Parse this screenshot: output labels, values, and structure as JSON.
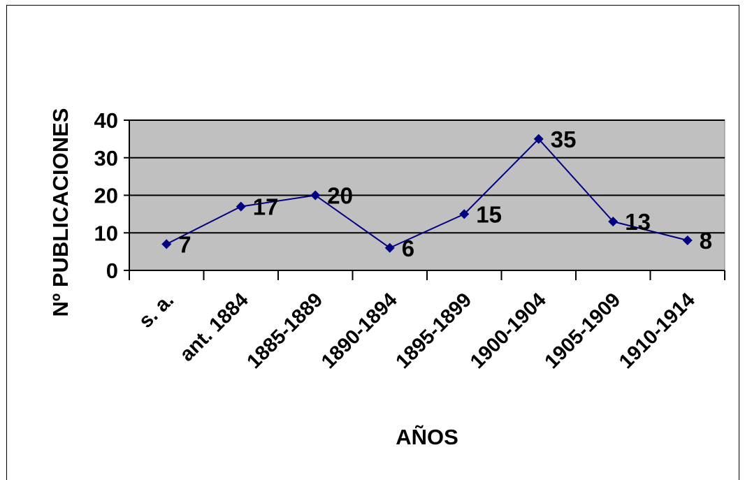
{
  "chart_data": {
    "type": "line",
    "categories": [
      "s. a.",
      "ant.  1884",
      "1885-1889",
      "1890-1894",
      "1895-1899",
      "1900-1904",
      "1905-1909",
      "1910-1914"
    ],
    "series": [
      {
        "values": [
          7,
          17,
          20,
          6,
          15,
          35,
          13,
          8
        ]
      }
    ],
    "data_labels": [
      "7",
      "17",
      "20",
      "6",
      "15",
      "35",
      "13",
      "8"
    ],
    "xlabel": "AÑOS",
    "ylabel": "Nº PUBLICACIONES",
    "ylim": [
      0,
      40
    ],
    "yticks": [
      "0",
      "10",
      "20",
      "30",
      "40"
    ],
    "grid": true,
    "legend": "none",
    "colors": {
      "line": "#000080",
      "marker": "#000080",
      "plot_bg": "#c0c0c0",
      "grid": "#000000"
    }
  }
}
